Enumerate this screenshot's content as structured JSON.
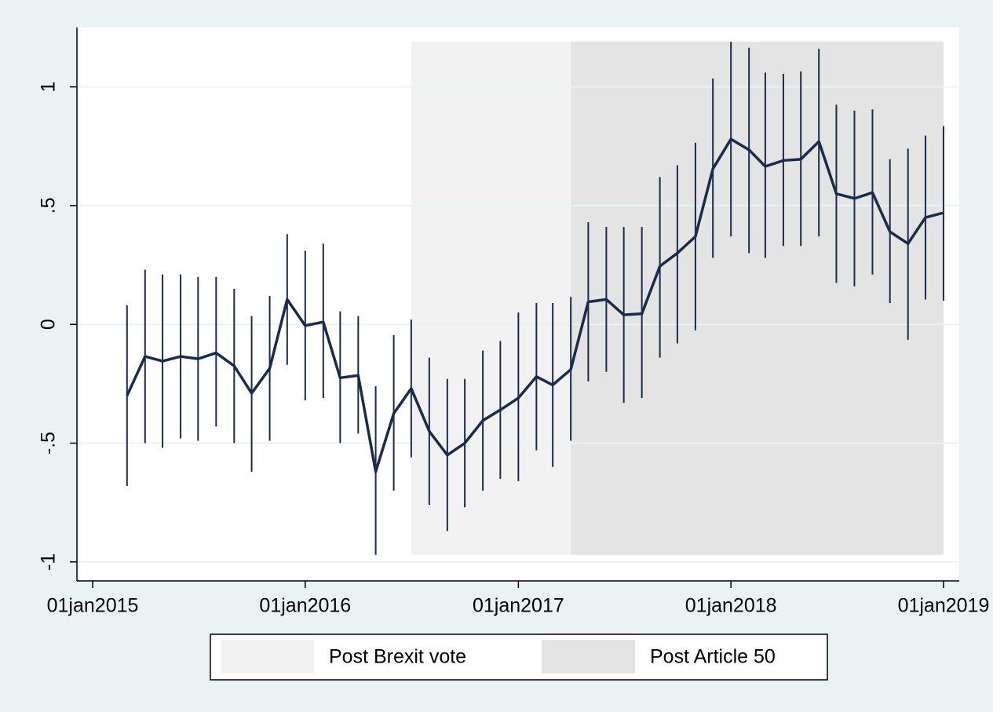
{
  "chart_data": {
    "type": "line",
    "color": "#1a2b4c",
    "x": [
      "2015-03-01",
      "2015-04-01",
      "2015-05-01",
      "2015-06-01",
      "2015-07-01",
      "2015-08-01",
      "2015-09-01",
      "2015-10-01",
      "2015-11-01",
      "2015-12-01",
      "2016-01-01",
      "2016-02-01",
      "2016-03-01",
      "2016-04-01",
      "2016-05-01",
      "2016-06-01",
      "2016-07-01",
      "2016-08-01",
      "2016-09-01",
      "2016-10-01",
      "2016-11-01",
      "2016-12-01",
      "2017-01-01",
      "2017-02-01",
      "2017-03-01",
      "2017-04-01",
      "2017-05-01",
      "2017-06-01",
      "2017-07-01",
      "2017-08-01",
      "2017-09-01",
      "2017-10-01",
      "2017-11-01",
      "2017-12-01",
      "2018-01-01",
      "2018-02-01",
      "2018-03-01",
      "2018-04-01",
      "2018-05-01",
      "2018-06-01",
      "2018-07-01",
      "2018-08-01",
      "2018-09-01",
      "2018-10-01",
      "2018-11-01",
      "2018-12-01",
      "2019-01-01"
    ],
    "values": [
      -0.3,
      -0.135,
      -0.155,
      -0.135,
      -0.145,
      -0.12,
      -0.175,
      -0.29,
      -0.185,
      0.105,
      -0.005,
      0.01,
      -0.225,
      -0.215,
      -0.62,
      -0.375,
      -0.27,
      -0.45,
      -0.55,
      -0.5,
      -0.405,
      -0.36,
      -0.31,
      -0.22,
      -0.255,
      -0.19,
      0.095,
      0.105,
      0.04,
      0.045,
      0.245,
      0.3,
      0.37,
      0.655,
      0.78,
      0.735,
      0.665,
      0.69,
      0.695,
      0.77,
      0.55,
      0.53,
      0.555,
      0.39,
      0.34,
      0.45,
      0.47
    ],
    "lower": [
      -0.68,
      -0.5,
      -0.52,
      -0.48,
      -0.49,
      -0.43,
      -0.5,
      -0.62,
      -0.49,
      -0.17,
      -0.32,
      -0.31,
      -0.5,
      -0.46,
      -0.97,
      -0.7,
      -0.56,
      -0.76,
      -0.87,
      -0.77,
      -0.7,
      -0.65,
      -0.66,
      -0.53,
      -0.6,
      -0.49,
      -0.24,
      -0.2,
      -0.33,
      -0.31,
      -0.14,
      -0.08,
      -0.025,
      0.28,
      0.37,
      0.3,
      0.28,
      0.33,
      0.33,
      0.37,
      0.175,
      0.16,
      0.21,
      0.09,
      -0.065,
      0.105,
      0.1
    ],
    "upper": [
      0.08,
      0.23,
      0.21,
      0.21,
      0.2,
      0.2,
      0.15,
      0.035,
      0.12,
      0.38,
      0.31,
      0.34,
      0.055,
      0.035,
      -0.26,
      -0.045,
      0.02,
      -0.14,
      -0.23,
      -0.23,
      -0.11,
      -0.07,
      0.05,
      0.09,
      0.09,
      0.115,
      0.43,
      0.41,
      0.41,
      0.41,
      0.62,
      0.67,
      0.765,
      1.035,
      1.19,
      1.165,
      1.06,
      1.055,
      1.065,
      1.16,
      0.925,
      0.9,
      0.905,
      0.695,
      0.74,
      0.795,
      0.835
    ],
    "shaded": [
      {
        "name": "Post Brexit vote",
        "color": "#f2f2f2",
        "start": "2016-07-01",
        "end": "2019-01-01",
        "yrange": [
          -0.97,
          1.19
        ]
      },
      {
        "name": "Post Article 50",
        "color": "#e4e4e4",
        "start": "2017-04-01",
        "end": "2019-01-01",
        "yrange": [
          -0.97,
          1.19
        ]
      }
    ],
    "xlim": [
      "2014-12-05",
      "2019-01-28"
    ],
    "xticks": [
      {
        "value": "2015-01-01",
        "label": "01jan2015"
      },
      {
        "value": "2016-01-01",
        "label": "01jan2016"
      },
      {
        "value": "2017-01-01",
        "label": "01jan2017"
      },
      {
        "value": "2018-01-01",
        "label": "01jan2018"
      },
      {
        "value": "2019-01-01",
        "label": "01jan2019"
      }
    ],
    "ylim": [
      -1.08,
      1.25
    ],
    "yticks": [
      {
        "value": -1,
        "label": "-1"
      },
      {
        "value": -0.5,
        "label": "-.5"
      },
      0,
      {
        "value": 0.5,
        "label": ".5"
      },
      1
    ],
    "grid": true
  }
}
